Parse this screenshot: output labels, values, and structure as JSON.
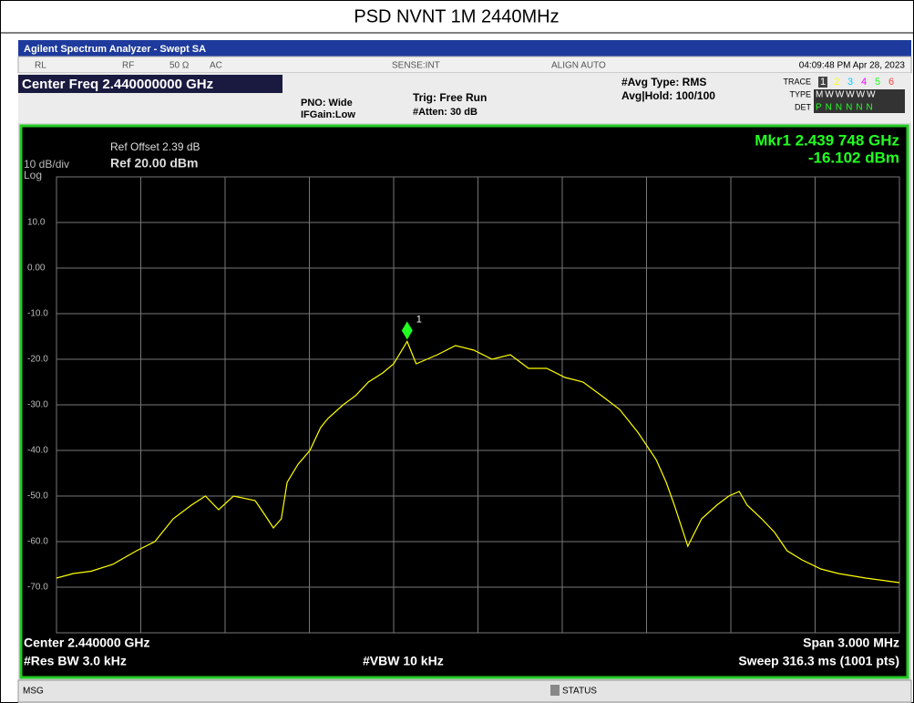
{
  "header": {
    "title": "PSD NVNT 1M 2440MHz"
  },
  "window": {
    "title": "Agilent Spectrum Analyzer - Swept SA"
  },
  "status": {
    "rl": "RL",
    "rf": "RF",
    "impedance": "50 Ω",
    "coupling": "AC",
    "sense": "SENSE:INT",
    "align": "ALIGN AUTO",
    "time": "04:09:48 PM Apr 28, 2023"
  },
  "settings": {
    "center_freq": "Center Freq 2.440000000 GHz",
    "pno": "PNO: Wide",
    "ifgain": "IFGain:Low",
    "trig": "Trig: Free Run",
    "atten": "#Atten: 30 dB",
    "avg_type": "#Avg Type: RMS",
    "avg_hold": "Avg|Hold: 100/100",
    "trace_label": "TRACE",
    "traces": [
      "1",
      "2",
      "3",
      "4",
      "5",
      "6"
    ],
    "type_label": "TYPE",
    "type_value": "MWWWWW",
    "det_label": "DET",
    "det_value": "PNNNNN"
  },
  "chart_data": {
    "type": "line",
    "scale": "10 dB/div",
    "scale_type": "Log",
    "ref_offset": "Ref Offset 2.39 dB",
    "ref_level": "Ref 20.00 dBm",
    "marker_freq": "Mkr1 2.439 748 GHz",
    "marker_level": "-16.102 dBm",
    "marker": {
      "label": "1",
      "x": 2439.748,
      "y": -16.102
    },
    "center": "Center 2.440000 GHz",
    "span": "Span 3.000 MHz",
    "rbw": "#Res BW 3.0 kHz",
    "vbw": "#VBW 10 kHz",
    "sweep": "Sweep  316.3 ms (1001 pts)",
    "color": "#ffff00",
    "xlim": [
      2438.5,
      2441.5
    ],
    "ylim": [
      -80,
      20
    ],
    "yticks": [
      {
        "value": 10,
        "label": "10.0"
      },
      {
        "value": 0,
        "label": "0.00"
      },
      {
        "value": -10,
        "label": "-10.0"
      },
      {
        "value": -20,
        "label": "-20.0"
      },
      {
        "value": -30,
        "label": "-30.0"
      },
      {
        "value": -40,
        "label": "-40.0"
      },
      {
        "value": -50,
        "label": "-50.0"
      },
      {
        "value": -60,
        "label": "-60.0"
      },
      {
        "value": -70,
        "label": "-70.0"
      }
    ],
    "grid": true,
    "x": [
      2438.5,
      2438.56,
      2438.623,
      2438.7,
      2438.785,
      2438.85,
      2438.915,
      2438.98,
      2439.03,
      2439.077,
      2439.13,
      2439.207,
      2439.24,
      2439.272,
      2439.3,
      2439.321,
      2439.36,
      2439.402,
      2439.44,
      2439.466,
      2439.52,
      2439.564,
      2439.61,
      2439.661,
      2439.7,
      2439.748,
      2439.78,
      2439.856,
      2439.92,
      2439.985,
      2440.05,
      2440.115,
      2440.18,
      2440.245,
      2440.31,
      2440.374,
      2440.44,
      2440.504,
      2440.569,
      2440.634,
      2440.67,
      2440.699,
      2440.747,
      2440.796,
      2440.85,
      2440.893,
      2440.93,
      2440.958,
      2441.01,
      2441.056,
      2441.1,
      2441.153,
      2441.22,
      2441.283,
      2441.38,
      2441.44,
      2441.5
    ],
    "values": [
      -68,
      -67,
      -66.5,
      -65,
      -62,
      -60,
      -55,
      -52,
      -50,
      -53,
      -50,
      -51,
      -54,
      -57,
      -55,
      -47,
      -43,
      -40,
      -35,
      -33,
      -30,
      -28,
      -25,
      -23,
      -21,
      -16.102,
      -21,
      -19,
      -17,
      -18,
      -20,
      -19,
      -22,
      -22,
      -24,
      -25,
      -28,
      -31,
      -36,
      -42,
      -47,
      -52,
      -61,
      -55,
      -52,
      -50,
      -49,
      -52,
      -55,
      -58,
      -62,
      -64,
      -66,
      -67,
      -68,
      -68.5,
      -69
    ]
  },
  "footer": {
    "msg": "MSG",
    "status": "STATUS"
  }
}
